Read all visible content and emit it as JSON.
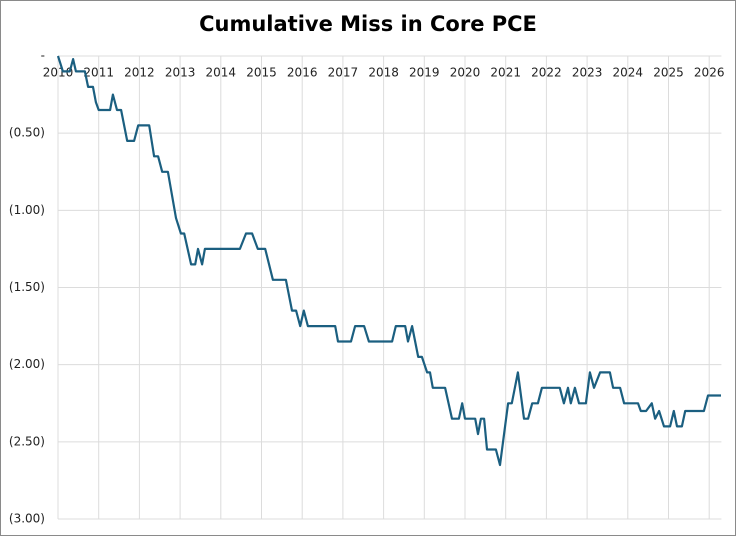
{
  "chart_data": {
    "type": "line",
    "title": "Cumulative Miss in Core PCE",
    "xlim": [
      2010,
      2026.3
    ],
    "xticks": [
      2010,
      2011,
      2012,
      2013,
      2014,
      2015,
      2016,
      2017,
      2018,
      2019,
      2020,
      2021,
      2022,
      2023,
      2024,
      2025,
      2026
    ],
    "ylim": [
      -3,
      0
    ],
    "yticks": [
      {
        "value": 0,
        "label": "-"
      },
      {
        "value": -0.5,
        "label": "(0.50)"
      },
      {
        "value": -1,
        "label": "(1.00)"
      },
      {
        "value": -1.5,
        "label": "(1.50)"
      },
      {
        "value": -2,
        "label": "(2.00)"
      },
      {
        "value": -2.5,
        "label": "(2.50)"
      },
      {
        "value": -3,
        "label": "(3.00)"
      }
    ],
    "grid": true,
    "x": [
      2010.0,
      2010.12,
      2010.29,
      2010.37,
      2010.44,
      2010.66,
      2010.74,
      2010.86,
      2010.93,
      2011.0,
      2011.28,
      2011.35,
      2011.45,
      2011.55,
      2011.7,
      2011.87,
      2011.97,
      2012.24,
      2012.36,
      2012.46,
      2012.56,
      2012.7,
      2012.9,
      2013.02,
      2013.1,
      2013.27,
      2013.37,
      2013.44,
      2013.54,
      2013.61,
      2014.47,
      2014.62,
      2014.77,
      2014.91,
      2015.09,
      2015.28,
      2015.6,
      2015.75,
      2015.85,
      2015.95,
      2016.04,
      2016.14,
      2016.81,
      2016.88,
      2017.2,
      2017.3,
      2017.52,
      2017.64,
      2018.21,
      2018.3,
      2018.53,
      2018.6,
      2018.7,
      2018.85,
      2018.94,
      2019.07,
      2019.14,
      2019.21,
      2019.51,
      2019.68,
      2019.85,
      2019.93,
      2020.0,
      2020.25,
      2020.32,
      2020.39,
      2020.47,
      2020.54,
      2020.76,
      2020.86,
      2021.06,
      2021.15,
      2021.3,
      2021.45,
      2021.55,
      2021.65,
      2021.79,
      2021.89,
      2022.33,
      2022.43,
      2022.53,
      2022.6,
      2022.7,
      2022.8,
      2022.97,
      2023.07,
      2023.17,
      2023.32,
      2023.56,
      2023.64,
      2023.81,
      2023.91,
      2024.25,
      2024.32,
      2024.45,
      2024.59,
      2024.67,
      2024.77,
      2024.89,
      2025.04,
      2025.13,
      2025.21,
      2025.33,
      2025.41,
      2025.87,
      2025.97,
      2026.29
    ],
    "series": [
      {
        "color": "#1b5f80",
        "values": [
          0,
          -0.1,
          -0.1,
          -0.02,
          -0.1,
          -0.1,
          -0.2,
          -0.2,
          -0.3,
          -0.35,
          -0.35,
          -0.25,
          -0.35,
          -0.35,
          -0.55,
          -0.55,
          -0.45,
          -0.45,
          -0.65,
          -0.65,
          -0.75,
          -0.75,
          -1.05,
          -1.15,
          -1.15,
          -1.35,
          -1.35,
          -1.25,
          -1.35,
          -1.25,
          -1.25,
          -1.15,
          -1.15,
          -1.25,
          -1.25,
          -1.45,
          -1.45,
          -1.65,
          -1.65,
          -1.75,
          -1.65,
          -1.75,
          -1.75,
          -1.85,
          -1.85,
          -1.75,
          -1.75,
          -1.85,
          -1.85,
          -1.75,
          -1.75,
          -1.85,
          -1.75,
          -1.95,
          -1.95,
          -2.05,
          -2.05,
          -2.15,
          -2.15,
          -2.35,
          -2.35,
          -2.25,
          -2.35,
          -2.35,
          -2.45,
          -2.35,
          -2.35,
          -2.55,
          -2.55,
          -2.65,
          -2.25,
          -2.25,
          -2.05,
          -2.35,
          -2.35,
          -2.25,
          -2.25,
          -2.15,
          -2.15,
          -2.25,
          -2.15,
          -2.25,
          -2.15,
          -2.25,
          -2.25,
          -2.05,
          -2.15,
          -2.05,
          -2.05,
          -2.15,
          -2.15,
          -2.25,
          -2.25,
          -2.3,
          -2.3,
          -2.25,
          -2.35,
          -2.3,
          -2.4,
          -2.4,
          -2.3,
          -2.4,
          -2.4,
          -2.3,
          -2.3,
          -2.2,
          -2.2
        ]
      }
    ]
  }
}
